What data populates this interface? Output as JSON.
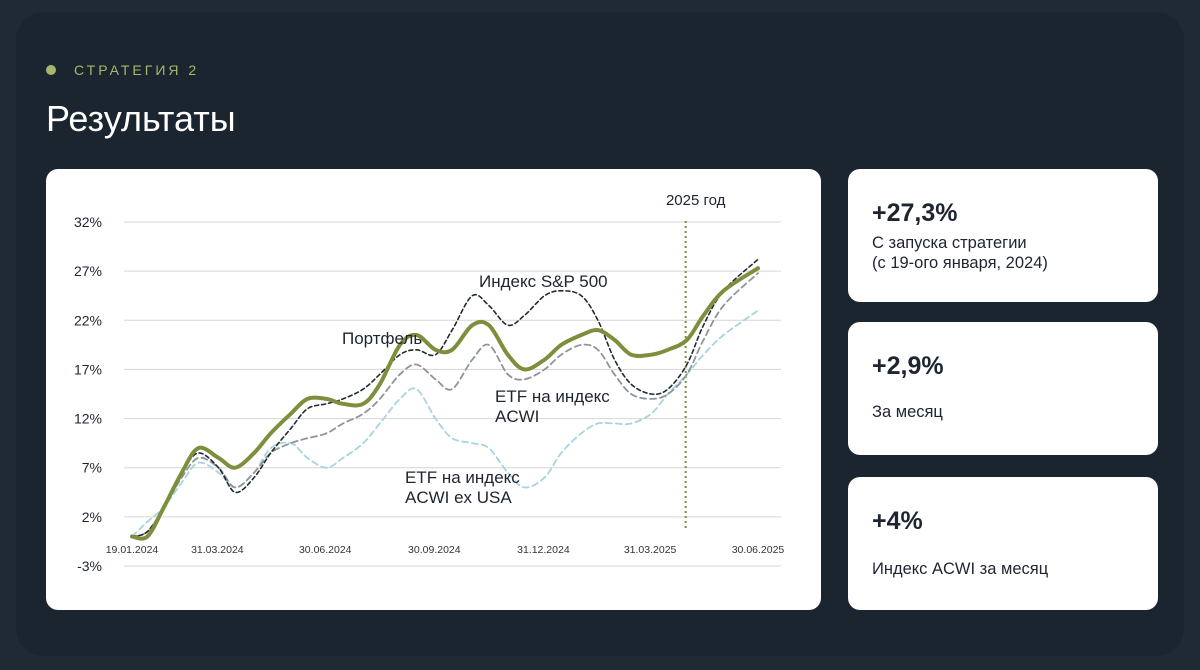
{
  "header": {
    "eyebrow": "СТРАТЕГИЯ 2",
    "title": "Результаты"
  },
  "colors": {
    "background": "#1a2530",
    "accent": "#a8b66a",
    "portfolio": "#7d8f3c",
    "sp500": "#1f2a33",
    "acwi": "#8d959c",
    "acwi_ex_usa": "#a9d3df",
    "marker": "#7d8f3c"
  },
  "chart_data": {
    "type": "line",
    "marker_label": "2025 год",
    "marker_x": "2025-04-30",
    "ylim": [
      -3,
      32
    ],
    "y_ticks": [
      "32%",
      "27%",
      "22%",
      "17%",
      "12%",
      "7%",
      "2%",
      "-3%"
    ],
    "x_ticks": [
      "19.01.2024",
      "31.03.2024",
      "30.06.2024",
      "30.09.2024",
      "31.12.2024",
      "31.03.2025",
      "30.06.2025"
    ],
    "x_range": [
      "2024-01-19",
      "2025-06-30"
    ],
    "grid": true,
    "series": [
      {
        "name": "Портфель",
        "key": "portfolio",
        "points": [
          [
            "2024-01-19",
            0
          ],
          [
            "2024-02-01",
            0
          ],
          [
            "2024-02-15",
            3
          ],
          [
            "2024-03-01",
            6.5
          ],
          [
            "2024-03-15",
            9
          ],
          [
            "2024-04-01",
            8
          ],
          [
            "2024-04-15",
            7
          ],
          [
            "2024-05-01",
            8.5
          ],
          [
            "2024-05-15",
            10.5
          ],
          [
            "2024-06-01",
            12.5
          ],
          [
            "2024-06-15",
            14
          ],
          [
            "2024-07-01",
            14
          ],
          [
            "2024-07-15",
            13.5
          ],
          [
            "2024-08-01",
            13.5
          ],
          [
            "2024-08-15",
            15.5
          ],
          [
            "2024-09-01",
            19.5
          ],
          [
            "2024-09-15",
            20.5
          ],
          [
            "2024-10-01",
            19
          ],
          [
            "2024-10-15",
            19
          ],
          [
            "2024-11-01",
            21.5
          ],
          [
            "2024-11-15",
            21.5
          ],
          [
            "2024-12-01",
            18.5
          ],
          [
            "2024-12-15",
            17
          ],
          [
            "2025-01-01",
            18
          ],
          [
            "2025-01-15",
            19.5
          ],
          [
            "2025-02-01",
            20.5
          ],
          [
            "2025-02-15",
            21
          ],
          [
            "2025-03-01",
            20
          ],
          [
            "2025-03-15",
            18.5
          ],
          [
            "2025-04-01",
            18.5
          ],
          [
            "2025-04-15",
            19
          ],
          [
            "2025-05-01",
            20
          ],
          [
            "2025-05-15",
            22.5
          ],
          [
            "2025-06-01",
            25
          ],
          [
            "2025-06-30",
            27.3
          ]
        ]
      },
      {
        "name": "Индекс S&P 500",
        "key": "sp500",
        "points": [
          [
            "2024-01-19",
            0
          ],
          [
            "2024-02-01",
            0.5
          ],
          [
            "2024-02-15",
            3
          ],
          [
            "2024-03-01",
            6.5
          ],
          [
            "2024-03-15",
            8.5
          ],
          [
            "2024-04-01",
            7
          ],
          [
            "2024-04-15",
            4.5
          ],
          [
            "2024-05-01",
            6
          ],
          [
            "2024-05-15",
            8.5
          ],
          [
            "2024-06-01",
            11
          ],
          [
            "2024-06-15",
            13
          ],
          [
            "2024-07-01",
            13.5
          ],
          [
            "2024-07-15",
            14
          ],
          [
            "2024-08-01",
            15
          ],
          [
            "2024-08-15",
            16.5
          ],
          [
            "2024-09-01",
            18.5
          ],
          [
            "2024-09-15",
            19
          ],
          [
            "2024-10-01",
            18.5
          ],
          [
            "2024-10-15",
            21
          ],
          [
            "2024-11-01",
            24.5
          ],
          [
            "2024-11-15",
            23.5
          ],
          [
            "2024-12-01",
            21.5
          ],
          [
            "2024-12-15",
            22.5
          ],
          [
            "2025-01-01",
            24.5
          ],
          [
            "2025-01-15",
            25
          ],
          [
            "2025-02-01",
            24.5
          ],
          [
            "2025-02-15",
            22
          ],
          [
            "2025-03-01",
            18
          ],
          [
            "2025-03-15",
            15.5
          ],
          [
            "2025-04-01",
            14.5
          ],
          [
            "2025-04-15",
            15
          ],
          [
            "2025-05-01",
            17.5
          ],
          [
            "2025-05-15",
            21.5
          ],
          [
            "2025-06-01",
            25
          ],
          [
            "2025-06-30",
            28.2
          ]
        ]
      },
      {
        "name": "ETF на индекс ACWI",
        "key": "acwi",
        "points": [
          [
            "2024-01-19",
            0
          ],
          [
            "2024-02-01",
            0.5
          ],
          [
            "2024-02-15",
            3
          ],
          [
            "2024-03-01",
            6
          ],
          [
            "2024-03-15",
            8
          ],
          [
            "2024-04-01",
            7
          ],
          [
            "2024-04-15",
            5
          ],
          [
            "2024-05-01",
            6.5
          ],
          [
            "2024-05-15",
            8.5
          ],
          [
            "2024-06-01",
            9.5
          ],
          [
            "2024-06-15",
            10
          ],
          [
            "2024-07-01",
            10.5
          ],
          [
            "2024-07-15",
            11.5
          ],
          [
            "2024-08-01",
            12.5
          ],
          [
            "2024-08-15",
            14
          ],
          [
            "2024-09-01",
            16.5
          ],
          [
            "2024-09-15",
            17.5
          ],
          [
            "2024-10-01",
            16
          ],
          [
            "2024-10-15",
            15
          ],
          [
            "2024-11-01",
            18
          ],
          [
            "2024-11-15",
            19.5
          ],
          [
            "2024-12-01",
            16.5
          ],
          [
            "2024-12-15",
            16
          ],
          [
            "2025-01-01",
            17
          ],
          [
            "2025-01-15",
            18.5
          ],
          [
            "2025-02-01",
            19.5
          ],
          [
            "2025-02-15",
            19
          ],
          [
            "2025-03-01",
            16.5
          ],
          [
            "2025-03-15",
            14.5
          ],
          [
            "2025-04-01",
            14
          ],
          [
            "2025-04-15",
            14.5
          ],
          [
            "2025-05-01",
            16.5
          ],
          [
            "2025-05-15",
            20
          ],
          [
            "2025-06-01",
            23.5
          ],
          [
            "2025-06-30",
            26.8
          ]
        ]
      },
      {
        "name": "ETF на индекс ACWI ex USA",
        "key": "acwi_ex_usa",
        "points": [
          [
            "2024-01-19",
            0
          ],
          [
            "2024-02-01",
            1.5
          ],
          [
            "2024-02-15",
            3
          ],
          [
            "2024-03-01",
            5.5
          ],
          [
            "2024-03-15",
            7.5
          ],
          [
            "2024-04-01",
            6.5
          ],
          [
            "2024-04-15",
            5
          ],
          [
            "2024-05-01",
            6.5
          ],
          [
            "2024-05-15",
            9
          ],
          [
            "2024-06-01",
            9.5
          ],
          [
            "2024-06-15",
            8
          ],
          [
            "2024-07-01",
            7
          ],
          [
            "2024-07-15",
            8
          ],
          [
            "2024-08-01",
            9.5
          ],
          [
            "2024-08-15",
            11.5
          ],
          [
            "2024-09-01",
            14
          ],
          [
            "2024-09-15",
            15
          ],
          [
            "2024-10-01",
            12
          ],
          [
            "2024-10-15",
            10
          ],
          [
            "2024-11-01",
            9.5
          ],
          [
            "2024-11-15",
            9
          ],
          [
            "2024-12-01",
            6.5
          ],
          [
            "2024-12-15",
            5
          ],
          [
            "2025-01-01",
            6
          ],
          [
            "2025-01-15",
            8.5
          ],
          [
            "2025-02-01",
            10.5
          ],
          [
            "2025-02-15",
            11.5
          ],
          [
            "2025-03-01",
            11.5
          ],
          [
            "2025-03-15",
            11.5
          ],
          [
            "2025-04-01",
            12.5
          ],
          [
            "2025-04-15",
            14.5
          ],
          [
            "2025-05-01",
            16.5
          ],
          [
            "2025-05-15",
            18.5
          ],
          [
            "2025-06-01",
            20.5
          ],
          [
            "2025-06-30",
            23
          ]
        ]
      }
    ],
    "annotations": [
      {
        "series": "sp500",
        "lines": [
          "Индекс S&P 500"
        ]
      },
      {
        "series": "portfolio",
        "lines": [
          "Портфель"
        ]
      },
      {
        "series": "acwi",
        "lines": [
          "ETF на индекс",
          "ACWI"
        ]
      },
      {
        "series": "acwi_ex_usa",
        "lines": [
          "ETF на индекс",
          "ACWI ex USA"
        ]
      }
    ]
  },
  "stats": [
    {
      "value": "+27,3%",
      "label_lines": [
        "С запуска стратегии",
        "(с 19-ого января, 2024)"
      ]
    },
    {
      "value": "+2,9%",
      "label_lines": [
        "За месяц"
      ]
    },
    {
      "value": "+4%",
      "label_lines": [
        "Индекс ACWI за месяц"
      ]
    }
  ]
}
